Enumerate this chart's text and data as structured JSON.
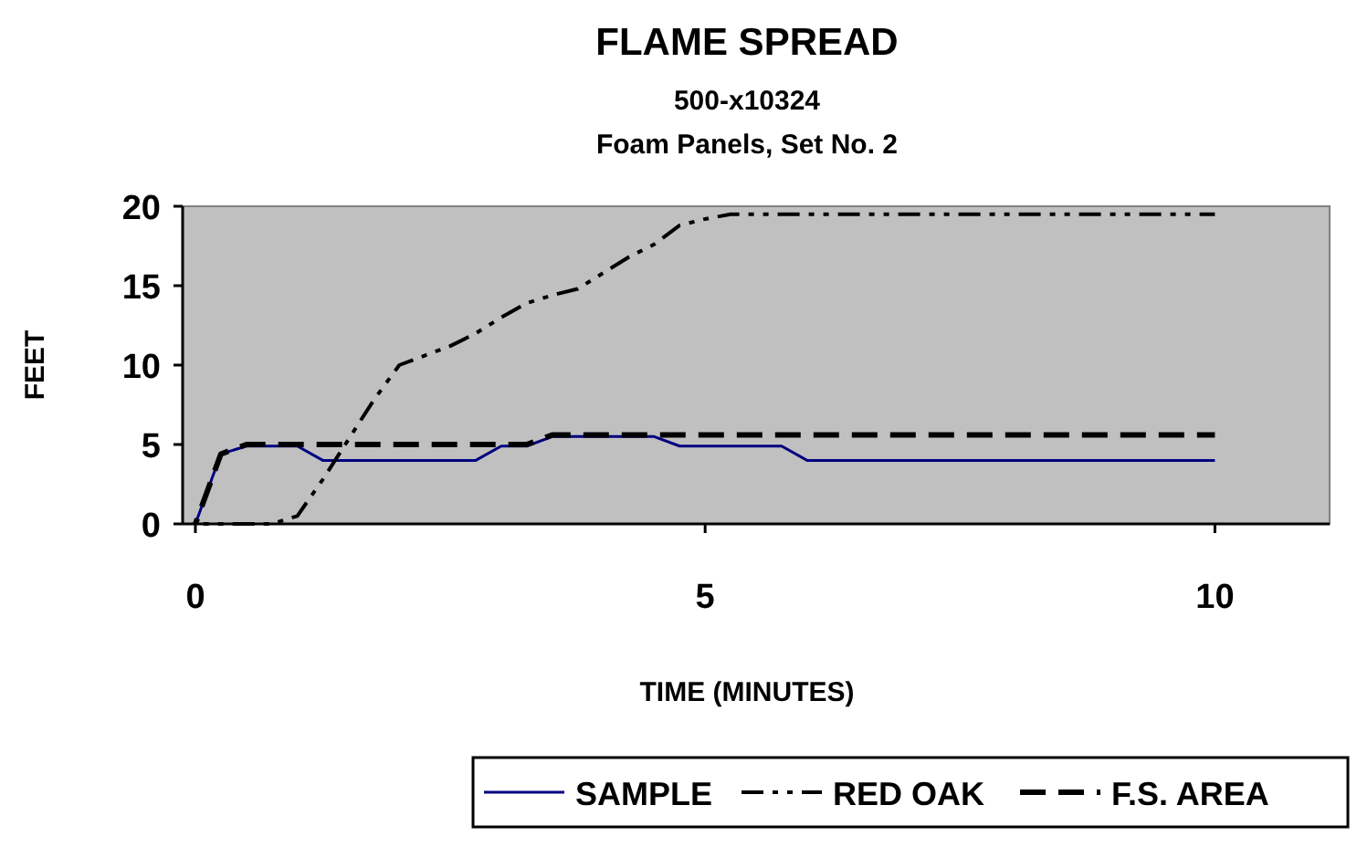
{
  "chart_data": {
    "type": "line",
    "title": "FLAME SPREAD",
    "subtitle": "500-x10324\nFoam Panels, Set No. 2",
    "xlabel": "TIME (MINUTES)",
    "ylabel": "FEET",
    "xlim": [
      -0.125,
      11.125
    ],
    "xticks": [
      0,
      5,
      10
    ],
    "ylim": [
      0,
      20
    ],
    "yticks": [
      0,
      5,
      10,
      15,
      20
    ],
    "grid": false,
    "legend": "bottom",
    "marker": "none",
    "series": [
      {
        "name": "SAMPLE",
        "color": "#000080",
        "line_style": "solid",
        "x": [
          0,
          0.25,
          0.5,
          1,
          1.25,
          2.75,
          3,
          3.25,
          3.5,
          4.5,
          4.75,
          5.75,
          6,
          10
        ],
        "values": [
          0,
          4.4,
          4.9,
          4.9,
          4,
          4,
          4.9,
          4.9,
          5.5,
          5.5,
          4.9,
          4.9,
          4,
          4
        ]
      },
      {
        "name": "RED OAK",
        "color": "#000000",
        "line_style": "dashdotdot",
        "x": [
          0,
          0.75,
          1,
          1.25,
          1.5,
          1.75,
          2,
          2.25,
          2.5,
          2.75,
          3,
          3.25,
          3.5,
          3.75,
          4,
          4.25,
          4.5,
          4.75,
          5,
          5.25,
          10
        ],
        "values": [
          0,
          0,
          0.5,
          2.8,
          5.3,
          7.8,
          10,
          10.6,
          11.2,
          12,
          13,
          13.9,
          14.4,
          14.8,
          15.8,
          16.8,
          17.6,
          18.8,
          19.2,
          19.5,
          19.5
        ]
      },
      {
        "name": "F.S. AREA",
        "color": "#000000",
        "line_style": "dashed",
        "x": [
          0,
          0.25,
          0.5,
          3.25,
          3.5,
          10
        ],
        "values": [
          0,
          4.4,
          5,
          5,
          5.6,
          5.6
        ]
      }
    ]
  }
}
